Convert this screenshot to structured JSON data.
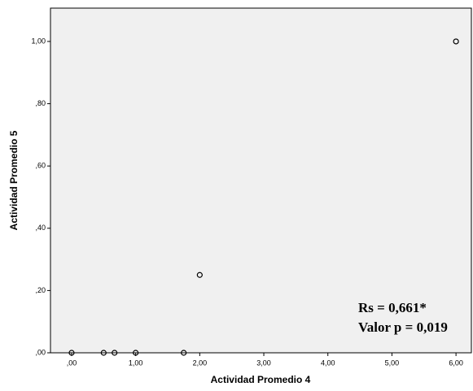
{
  "chart_data": {
    "type": "scatter",
    "x_label": "Actividad Promedio 4",
    "y_label": "Actividad Promedio 5",
    "x": [
      0,
      0.5,
      0.67,
      1,
      1.75,
      2,
      6
    ],
    "series": [
      {
        "color": "#000000",
        "values": [
          0,
          0,
          0,
          0,
          0,
          0.25,
          1
        ]
      }
    ],
    "xlim": [
      -0.33,
      6.24
    ],
    "ylim": [
      0,
      1.107
    ],
    "xticks": [
      {
        "value": 0,
        "label": ",00"
      },
      {
        "value": 1,
        "label": "1,00"
      },
      {
        "value": 2,
        "label": "2,00"
      },
      {
        "value": 3,
        "label": "3,00"
      },
      {
        "value": 4,
        "label": "4,00"
      },
      {
        "value": 5,
        "label": "5,00"
      },
      {
        "value": 6,
        "label": "6,00"
      }
    ],
    "yticks": [
      {
        "value": 0,
        "label": ",00"
      },
      {
        "value": 0.2,
        "label": ",20"
      },
      {
        "value": 0.4,
        "label": ",40"
      },
      {
        "value": 0.6,
        "label": ",60"
      },
      {
        "value": 0.8,
        "label": ",80"
      },
      {
        "value": 1,
        "label": "1,00"
      }
    ],
    "annotations": [
      "Rs = 0,661*",
      "Valor p = 0,019"
    ]
  }
}
